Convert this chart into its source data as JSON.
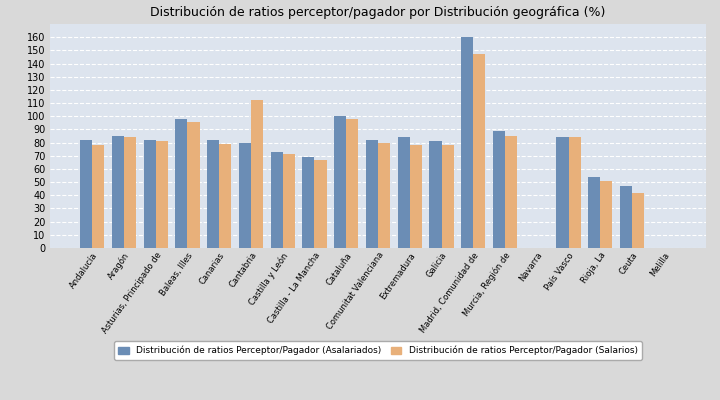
{
  "title": "Distribución de ratios perceptor/pagador por Distribución geográfica (%)",
  "categories": [
    "Andalucía",
    "Aragón",
    "Asturias, Principado de",
    "Baleas, Illes",
    "Canarias",
    "Cantabria",
    "Castilla y León",
    "Castilla - La Mancha",
    "Cataluña",
    "Comunitat Valenciana",
    "Extremadura",
    "Galicia",
    "Madrid, Comunidad de",
    "Murcia, Región de",
    "Navarra",
    "País Vasco",
    "Rioja, La",
    "Ceuta",
    "Melilla"
  ],
  "asalariados": [
    82,
    85,
    82,
    98,
    82,
    80,
    73,
    69,
    100,
    82,
    84,
    81,
    160,
    89,
    0,
    84,
    54,
    47,
    0
  ],
  "salarios": [
    78,
    84,
    81,
    96,
    79,
    112,
    71,
    67,
    98,
    80,
    78,
    78,
    147,
    85,
    0,
    84,
    51,
    42,
    0
  ],
  "color_asalariados": "#6b8db5",
  "color_salarios": "#e8b07a",
  "ylim": [
    0,
    170
  ],
  "yticks": [
    0,
    10,
    20,
    30,
    40,
    50,
    60,
    70,
    80,
    90,
    100,
    110,
    120,
    130,
    140,
    150,
    160
  ],
  "legend_asalariados": "Distribución de ratios Perceptor/Pagador (Asalariados)",
  "legend_salarios": "Distribución de ratios Perceptor/Pagador (Salarios)",
  "background_color": "#d9d9d9",
  "plot_background": "#dde4ee",
  "title_fontsize": 9,
  "bar_width": 0.38
}
